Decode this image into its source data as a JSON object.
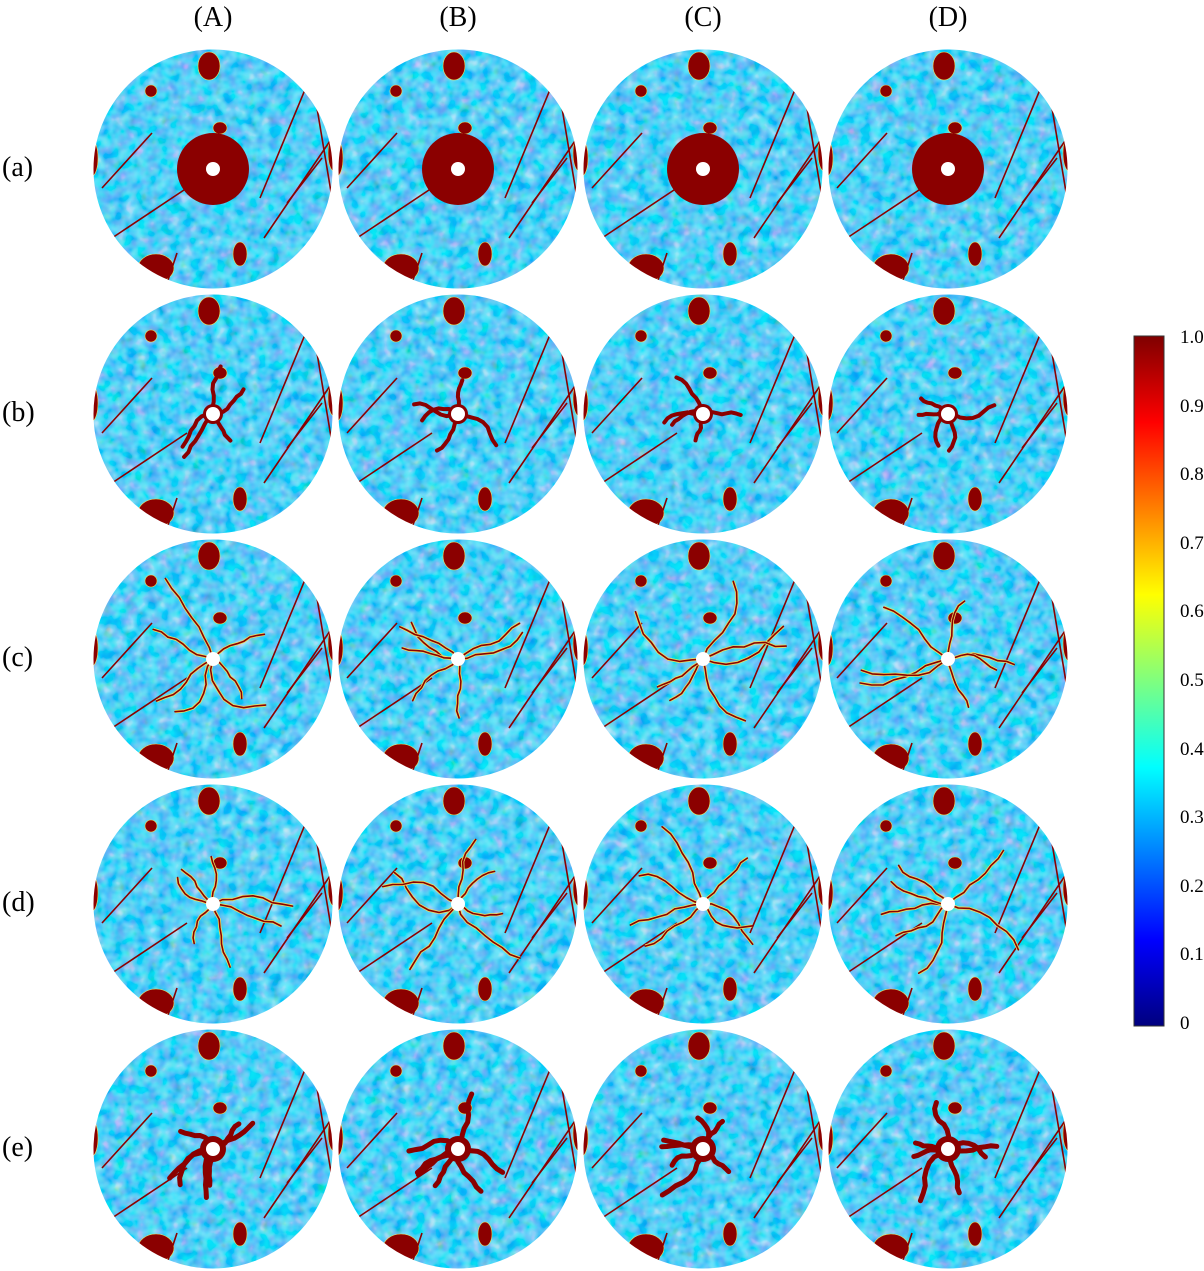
{
  "columns": [
    "(A)",
    "(B)",
    "(C)",
    "(D)"
  ],
  "rows": [
    "(a)",
    "(b)",
    "(c)",
    "(d)",
    "(e)"
  ],
  "colorbar": {
    "min": 0,
    "max": 1,
    "tick_labels": [
      "1.0",
      "0.9",
      "0.8",
      "0.7",
      "0.6",
      "0.5",
      "0.4",
      "0.3",
      "0.2",
      "0.1",
      "0"
    ],
    "colormap": [
      "#00007f",
      "#0000ff",
      "#007fff",
      "#00ffff",
      "#7fff7f",
      "#ffff00",
      "#ff7f00",
      "#ff0000",
      "#7f0000"
    ]
  },
  "colors": {
    "background_field": "#2f8ee0",
    "damage": "#8b0000",
    "borehole": "#ffffff"
  }
}
